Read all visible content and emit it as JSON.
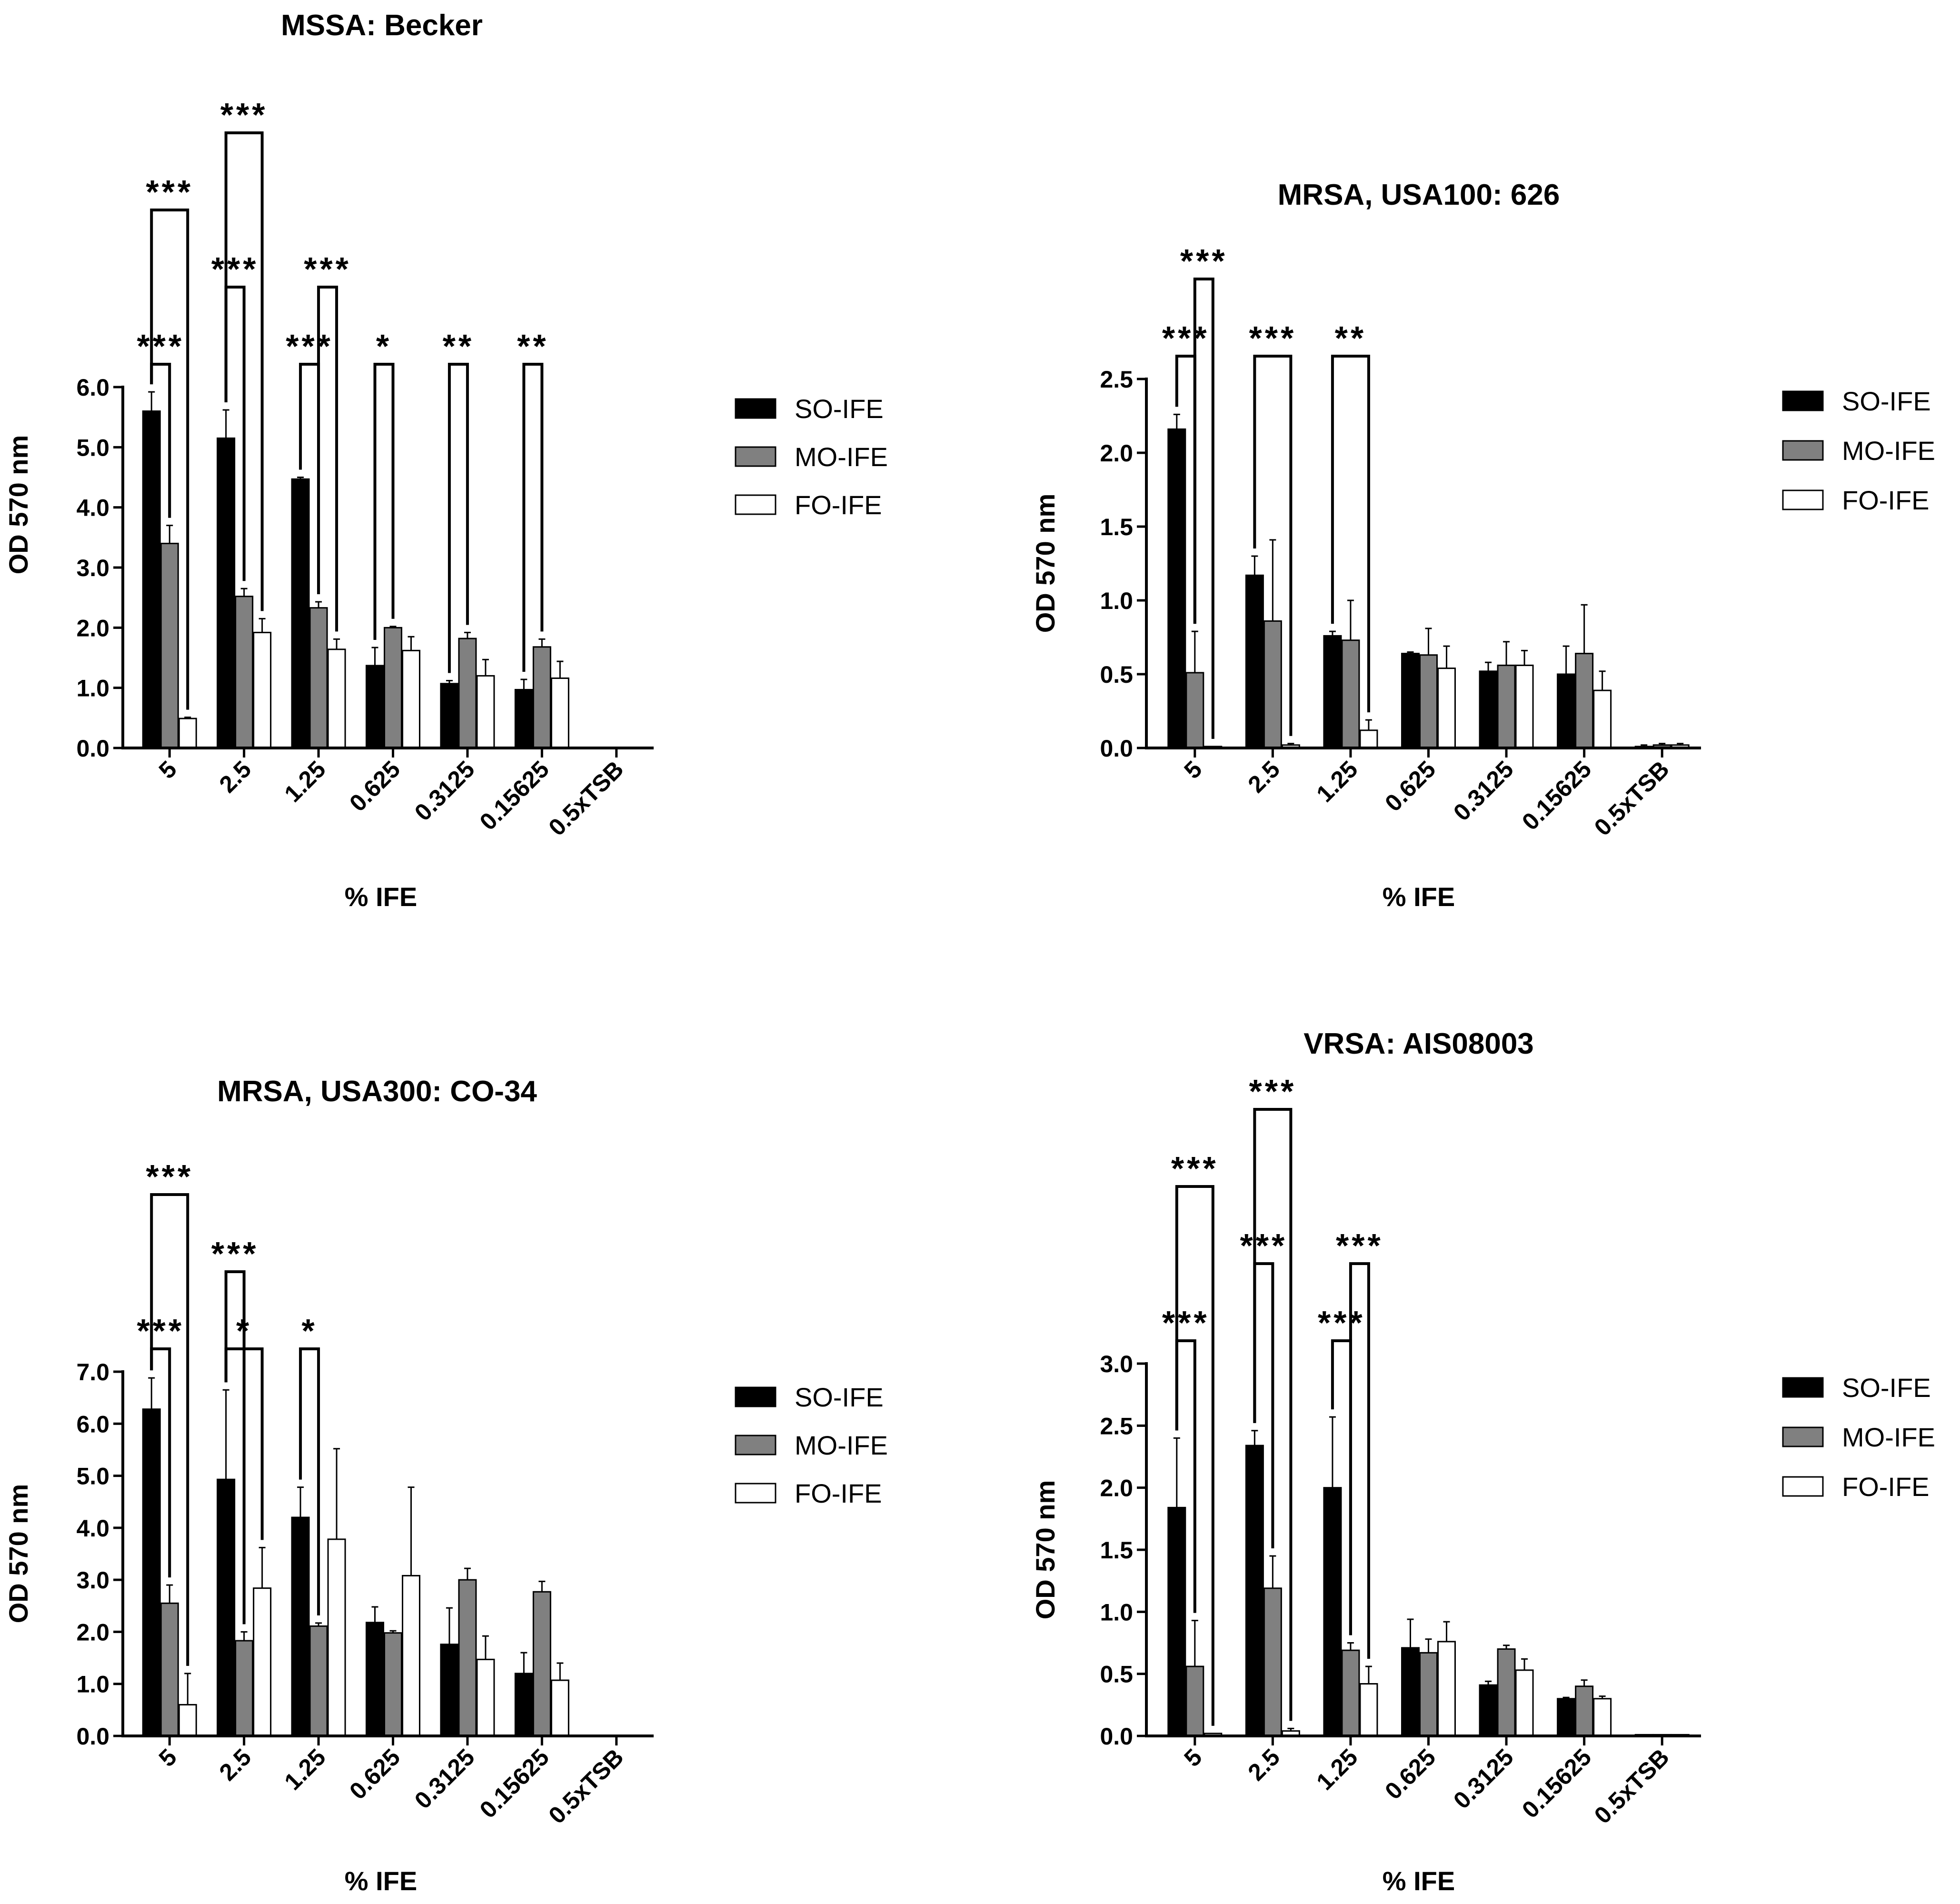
{
  "colors": {
    "SO-IFE": "#000000",
    "MO-IFE": "#808080",
    "FO-IFE": "#ffffff",
    "axis": "#000000"
  },
  "chart_data": [
    {
      "type": "bar",
      "title": "MSSA: Becker",
      "xlabel": "% IFE",
      "ylabel": "OD 570 nm",
      "ylim": [
        0,
        6.0
      ],
      "yticks": [
        "0.0",
        "1.0",
        "2.0",
        "3.0",
        "4.0",
        "5.0",
        "6.0"
      ],
      "categories": [
        "5",
        "2.5",
        "1.25",
        "0.625",
        "0.3125",
        "0.15625",
        "0.5xTSB"
      ],
      "series": [
        {
          "name": "SO-IFE",
          "values": [
            5.6,
            5.15,
            4.47,
            1.37,
            1.07,
            0.97,
            0
          ],
          "errors": [
            0.32,
            0.47,
            0.03,
            0.3,
            0.05,
            0.17,
            0
          ]
        },
        {
          "name": "MO-IFE",
          "values": [
            3.4,
            2.52,
            2.33,
            2.0,
            1.82,
            1.68,
            0
          ],
          "errors": [
            0.3,
            0.13,
            0.1,
            0.02,
            0.1,
            0.13,
            0
          ]
        },
        {
          "name": "FO-IFE",
          "values": [
            0.49,
            1.92,
            1.64,
            1.62,
            1.2,
            1.16,
            0
          ],
          "errors": [
            0.02,
            0.23,
            0.17,
            0.23,
            0.27,
            0.28,
            0
          ]
        }
      ],
      "legend": [
        "SO-IFE",
        "MO-IFE",
        "FO-IFE"
      ],
      "annotations": [
        {
          "label": "***",
          "from": [
            0,
            0
          ],
          "to": [
            0,
            1
          ],
          "level": 0
        },
        {
          "label": "***",
          "from": [
            0,
            0
          ],
          "to": [
            0,
            2
          ],
          "level": 2
        },
        {
          "label": "***",
          "from": [
            1,
            0
          ],
          "to": [
            1,
            1
          ],
          "level": 1
        },
        {
          "label": "***",
          "from": [
            1,
            0
          ],
          "to": [
            1,
            2
          ],
          "level": 3
        },
        {
          "label": "***",
          "from": [
            2,
            0
          ],
          "to": [
            2,
            1
          ],
          "level": 0
        },
        {
          "label": "***",
          "from": [
            2,
            1
          ],
          "to": [
            2,
            2
          ],
          "level": 1
        },
        {
          "label": "*",
          "from": [
            3,
            0
          ],
          "to": [
            3,
            1
          ],
          "level": 0
        },
        {
          "label": "**",
          "from": [
            4,
            0
          ],
          "to": [
            4,
            1
          ],
          "level": 0
        },
        {
          "label": "**",
          "from": [
            5,
            0
          ],
          "to": [
            5,
            1
          ],
          "level": 0
        }
      ]
    },
    {
      "type": "bar",
      "title": "MRSA, USA100: 626",
      "xlabel": "% IFE",
      "ylabel": "OD 570 nm",
      "ylim": [
        0,
        2.5
      ],
      "yticks": [
        "0.0",
        "0.5",
        "1.0",
        "1.5",
        "2.0",
        "2.5"
      ],
      "categories": [
        "5",
        "2.5",
        "1.25",
        "0.625",
        "0.3125",
        "0.15625",
        "0.5xTSB"
      ],
      "series": [
        {
          "name": "SO-IFE",
          "values": [
            2.16,
            1.17,
            0.76,
            0.64,
            0.52,
            0.5,
            0.01
          ],
          "errors": [
            0.1,
            0.13,
            0.03,
            0.01,
            0.06,
            0.19,
            0.01
          ]
        },
        {
          "name": "MO-IFE",
          "values": [
            0.51,
            0.86,
            0.73,
            0.63,
            0.56,
            0.64,
            0.02
          ],
          "errors": [
            0.28,
            0.55,
            0.27,
            0.18,
            0.16,
            0.33,
            0.01
          ]
        },
        {
          "name": "FO-IFE",
          "values": [
            0.01,
            0.02,
            0.12,
            0.54,
            0.56,
            0.39,
            0.02
          ],
          "errors": [
            0,
            0.01,
            0.07,
            0.15,
            0.1,
            0.13,
            0.01
          ]
        }
      ],
      "legend": [
        "SO-IFE",
        "MO-IFE",
        "FO-IFE"
      ],
      "annotations": [
        {
          "label": "***",
          "from": [
            0,
            0
          ],
          "to": [
            0,
            1
          ],
          "level": 0
        },
        {
          "label": "***",
          "from": [
            0,
            1
          ],
          "to": [
            0,
            2
          ],
          "level": 1
        },
        {
          "label": "***",
          "from": [
            1,
            0
          ],
          "to": [
            1,
            2
          ],
          "level": 0
        },
        {
          "label": "**",
          "from": [
            2,
            0
          ],
          "to": [
            2,
            2
          ],
          "level": 0
        }
      ]
    },
    {
      "type": "bar",
      "title": "MRSA, USA300: CO-34",
      "xlabel": "%  IFE",
      "ylabel": "OD 570 nm",
      "ylim": [
        0,
        7.0
      ],
      "yticks": [
        "0.0",
        "1.0",
        "2.0",
        "3.0",
        "4.0",
        "5.0",
        "6.0",
        "7.0"
      ],
      "categories": [
        "5",
        "2.5",
        "1.25",
        "0.625",
        "0.3125",
        "0.15625",
        "0.5xTSB"
      ],
      "series": [
        {
          "name": "SO-IFE",
          "values": [
            6.28,
            4.93,
            4.2,
            2.18,
            1.76,
            1.2,
            0
          ],
          "errors": [
            0.6,
            1.72,
            0.58,
            0.3,
            0.7,
            0.4,
            0
          ]
        },
        {
          "name": "MO-IFE",
          "values": [
            2.55,
            1.83,
            2.11,
            1.98,
            3.0,
            2.77,
            0
          ],
          "errors": [
            0.35,
            0.17,
            0.06,
            0.04,
            0.22,
            0.2,
            0
          ]
        },
        {
          "name": "FO-IFE",
          "values": [
            0.6,
            2.84,
            3.78,
            3.08,
            1.47,
            1.07,
            0
          ],
          "errors": [
            0.6,
            0.78,
            1.74,
            1.7,
            0.45,
            0.33,
            0
          ]
        }
      ],
      "legend": [
        "SO-IFE",
        "MO-IFE",
        "FO-IFE"
      ],
      "annotations": [
        {
          "label": "***",
          "from": [
            0,
            0
          ],
          "to": [
            0,
            1
          ],
          "level": 0
        },
        {
          "label": "***",
          "from": [
            0,
            0
          ],
          "to": [
            0,
            2
          ],
          "level": 2
        },
        {
          "label": "*",
          "from": [
            1,
            0
          ],
          "to": [
            1,
            2
          ],
          "level": 0
        },
        {
          "label": "***",
          "from": [
            1,
            0
          ],
          "to": [
            1,
            1
          ],
          "level": 1
        },
        {
          "label": "*",
          "from": [
            2,
            0
          ],
          "to": [
            2,
            1
          ],
          "level": 0
        }
      ]
    },
    {
      "type": "bar",
      "title": "VRSA: AIS08003",
      "xlabel": "% IFE",
      "ylabel": "OD 570 nm",
      "ylim": [
        0,
        3.0
      ],
      "yticks": [
        "0.0",
        "0.5",
        "1.0",
        "1.5",
        "2.0",
        "2.5",
        "3.0"
      ],
      "categories": [
        "5",
        "2.5",
        "1.25",
        "0.625",
        "0.3125",
        "0.15625",
        "0.5xTSB"
      ],
      "series": [
        {
          "name": "SO-IFE",
          "values": [
            1.84,
            2.34,
            2.0,
            0.71,
            0.41,
            0.3,
            0.01
          ],
          "errors": [
            0.56,
            0.12,
            0.57,
            0.23,
            0.03,
            0.01,
            0
          ]
        },
        {
          "name": "MO-IFE",
          "values": [
            0.56,
            1.19,
            0.69,
            0.67,
            0.7,
            0.4,
            0.01
          ],
          "errors": [
            0.37,
            0.26,
            0.06,
            0.11,
            0.03,
            0.05,
            0
          ]
        },
        {
          "name": "FO-IFE",
          "values": [
            0.02,
            0.04,
            0.42,
            0.76,
            0.53,
            0.3,
            0.01
          ],
          "errors": [
            0,
            0.02,
            0.14,
            0.16,
            0.09,
            0.02,
            0
          ]
        }
      ],
      "legend": [
        "SO-IFE",
        "MO-IFE",
        "FO-IFE"
      ],
      "annotations": [
        {
          "label": "***",
          "from": [
            0,
            0
          ],
          "to": [
            0,
            1
          ],
          "level": 0
        },
        {
          "label": "***",
          "from": [
            0,
            0
          ],
          "to": [
            0,
            2
          ],
          "level": 2
        },
        {
          "label": "***",
          "from": [
            1,
            0
          ],
          "to": [
            1,
            1
          ],
          "level": 1
        },
        {
          "label": "***",
          "from": [
            1,
            0
          ],
          "to": [
            1,
            2
          ],
          "level": 3
        },
        {
          "label": "***",
          "from": [
            2,
            0
          ],
          "to": [
            2,
            1
          ],
          "level": 0
        },
        {
          "label": "***",
          "from": [
            2,
            1
          ],
          "to": [
            2,
            2
          ],
          "level": 1
        }
      ]
    }
  ]
}
